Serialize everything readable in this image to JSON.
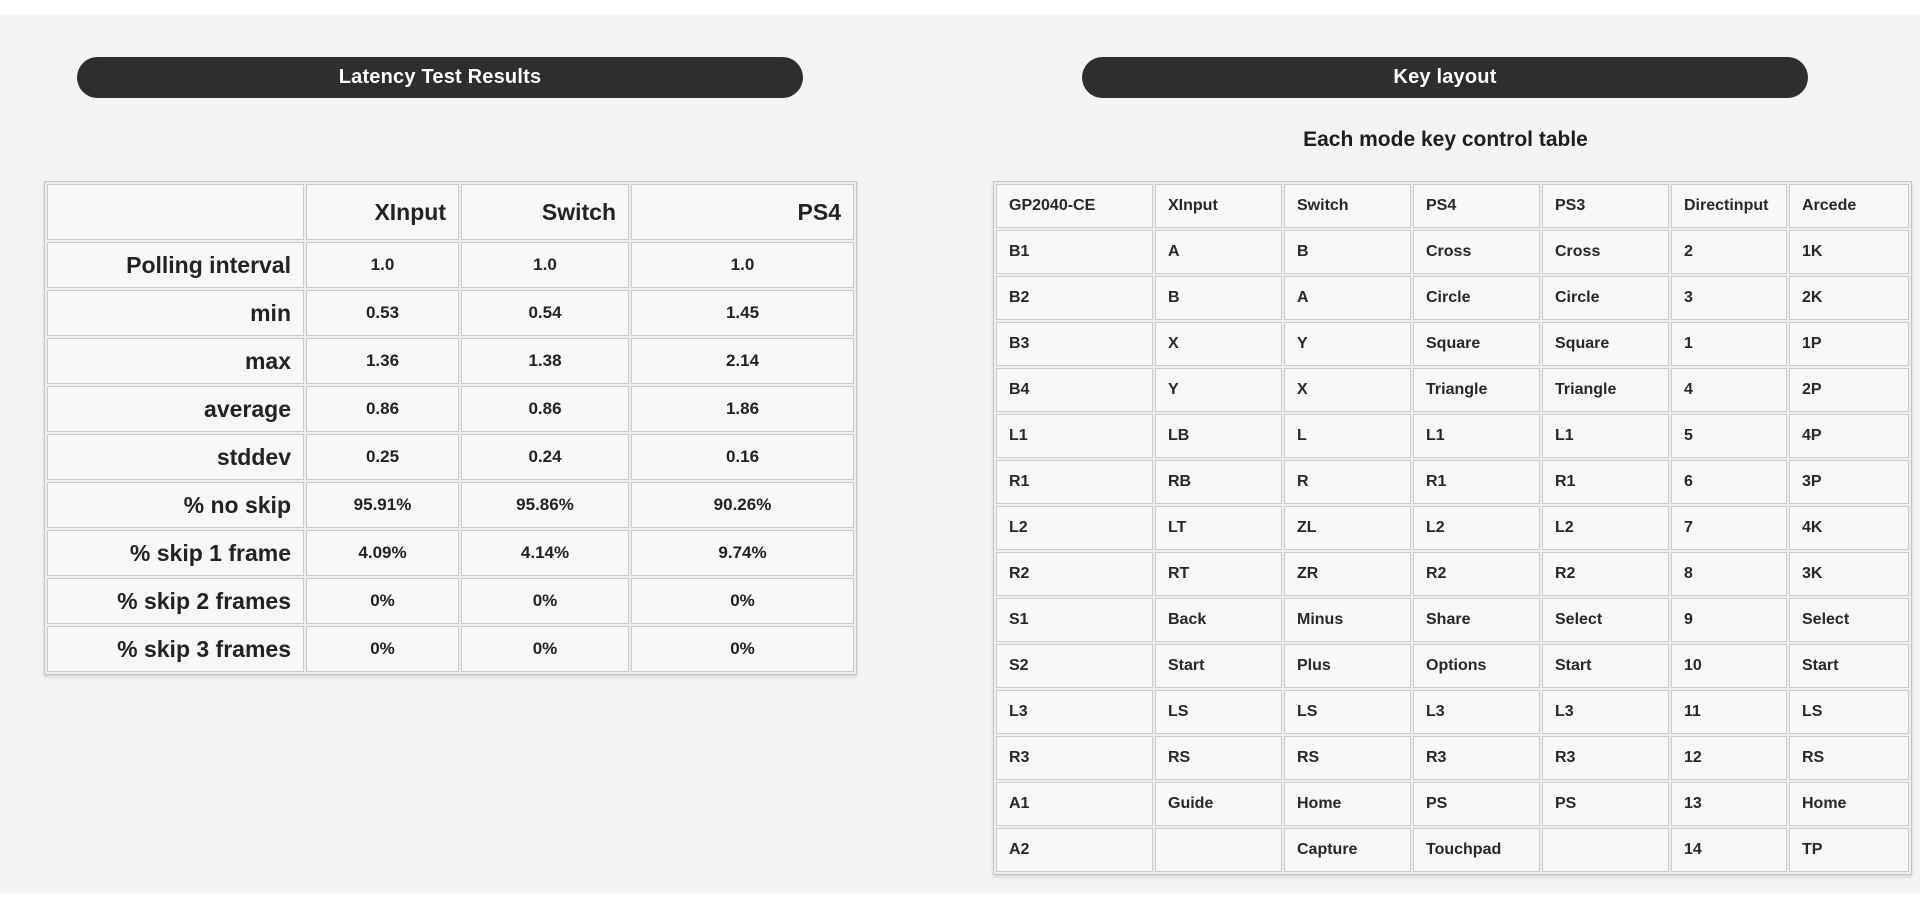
{
  "theme": {
    "page_bg": "#f4f4f5",
    "pill_bg": "#2e2e30",
    "pill_text": "#ffffff",
    "cell_bg": "#f8f8f8",
    "cell_border": "#cbcbcb",
    "text": "#232323"
  },
  "left_panel": {
    "title": "Latency Test Results",
    "table": {
      "columns": [
        "",
        "XInput",
        "Switch",
        "PS4"
      ],
      "rows": [
        {
          "label": "Polling interval",
          "values": [
            "1.0",
            "1.0",
            "1.0"
          ]
        },
        {
          "label": "min",
          "values": [
            "0.53",
            "0.54",
            "1.45"
          ]
        },
        {
          "label": "max",
          "values": [
            "1.36",
            "1.38",
            "2.14"
          ]
        },
        {
          "label": "average",
          "values": [
            "0.86",
            "0.86",
            "1.86"
          ]
        },
        {
          "label": "stddev",
          "values": [
            "0.25",
            "0.24",
            "0.16"
          ]
        },
        {
          "label": "% no skip",
          "values": [
            "95.91%",
            "95.86%",
            "90.26%"
          ]
        },
        {
          "label": "% skip 1 frame",
          "values": [
            "4.09%",
            "4.14%",
            "9.74%"
          ]
        },
        {
          "label": "% skip 2 frames",
          "values": [
            "0%",
            "0%",
            "0%"
          ]
        },
        {
          "label": "% skip 3 frames",
          "values": [
            "0%",
            "0%",
            "0%"
          ]
        }
      ]
    }
  },
  "right_panel": {
    "title": "Key layout",
    "subtitle": "Each mode key control table",
    "table": {
      "columns": [
        "GP2040-CE",
        "XInput",
        "Switch",
        "PS4",
        "PS3",
        "Directinput",
        "Arcede"
      ],
      "rows": [
        [
          "B1",
          "A",
          "B",
          "Cross",
          "Cross",
          "2",
          "1K"
        ],
        [
          "B2",
          "B",
          "A",
          "Circle",
          "Circle",
          "3",
          "2K"
        ],
        [
          "B3",
          "X",
          "Y",
          "Square",
          "Square",
          "1",
          "1P"
        ],
        [
          "B4",
          "Y",
          "X",
          "Triangle",
          "Triangle",
          "4",
          "2P"
        ],
        [
          "L1",
          "LB",
          "L",
          "L1",
          "L1",
          "5",
          "4P"
        ],
        [
          "R1",
          "RB",
          "R",
          "R1",
          "R1",
          "6",
          "3P"
        ],
        [
          "L2",
          "LT",
          "ZL",
          "L2",
          "L2",
          "7",
          "4K"
        ],
        [
          "R2",
          "RT",
          "ZR",
          "R2",
          "R2",
          "8",
          "3K"
        ],
        [
          "S1",
          "Back",
          "Minus",
          "Share",
          "Select",
          "9",
          "Select"
        ],
        [
          "S2",
          "Start",
          "Plus",
          "Options",
          "Start",
          "10",
          "Start"
        ],
        [
          "L3",
          "LS",
          "LS",
          "L3",
          "L3",
          "11",
          "LS"
        ],
        [
          "R3",
          "RS",
          "RS",
          "R3",
          "R3",
          "12",
          "RS"
        ],
        [
          "A1",
          "Guide",
          "Home",
          "PS",
          "PS",
          "13",
          "Home"
        ],
        [
          "A2",
          "",
          "Capture",
          "Touchpad",
          "",
          "14",
          "TP"
        ]
      ]
    }
  }
}
